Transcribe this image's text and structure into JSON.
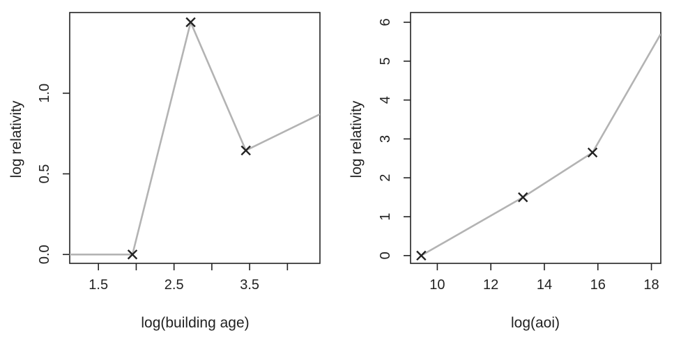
{
  "chart_data": [
    {
      "type": "line",
      "xlabel": "log(building age)",
      "ylabel": "log relativity",
      "xlim": [
        1.12,
        4.43
      ],
      "ylim": [
        -0.055,
        1.5
      ],
      "x_ticks": [
        1.5,
        2.0,
        2.5,
        3.0,
        3.5,
        4.0
      ],
      "x_tick_labels": [
        "1.5",
        "",
        "2.5",
        "",
        "3.5",
        ""
      ],
      "y_ticks": [
        0.0,
        0.5,
        1.0
      ],
      "y_tick_labels": [
        "0.0",
        "0.5",
        "1.0"
      ],
      "series": [
        {
          "x": [
            1.12,
            1.95,
            2.72,
            3.45,
            4.43
          ],
          "y": [
            0.0,
            0.0,
            1.44,
            0.645,
            0.87
          ]
        }
      ],
      "markers": {
        "x": [
          1.95,
          2.72,
          3.45
        ],
        "y": [
          0.0,
          1.44,
          0.645
        ]
      },
      "colors": {
        "line": "#b3b3b3",
        "marker": "#222222"
      }
    },
    {
      "type": "line",
      "xlabel": "log(aoi)",
      "ylabel": "log relativity",
      "xlim": [
        9.0,
        18.35
      ],
      "ylim": [
        -0.2,
        6.25
      ],
      "x_ticks": [
        10,
        12,
        14,
        16,
        18
      ],
      "x_tick_labels": [
        "10",
        "12",
        "14",
        "16",
        "18"
      ],
      "y_ticks": [
        0,
        1,
        2,
        3,
        4,
        5,
        6
      ],
      "y_tick_labels": [
        "0",
        "1",
        "2",
        "3",
        "4",
        "5",
        "6"
      ],
      "series": [
        {
          "x": [
            9.4,
            13.2,
            15.8,
            18.35
          ],
          "y": [
            0.0,
            1.5,
            2.65,
            5.7
          ]
        }
      ],
      "markers": {
        "x": [
          9.4,
          13.2,
          15.8
        ],
        "y": [
          0.0,
          1.5,
          2.65
        ]
      },
      "colors": {
        "line": "#b3b3b3",
        "marker": "#222222"
      }
    }
  ]
}
